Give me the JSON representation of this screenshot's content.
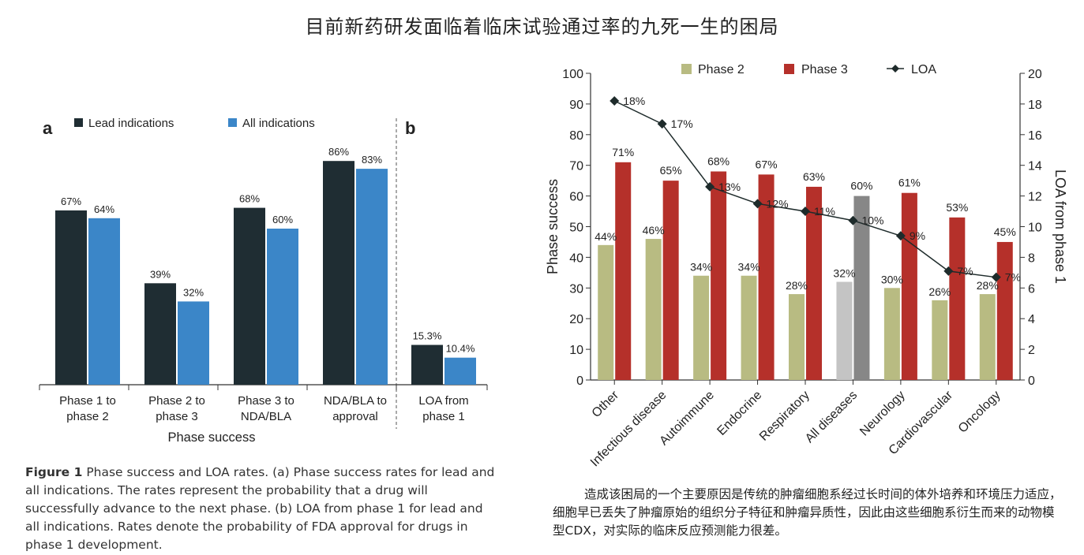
{
  "page_title": "目前新药研发面临着临床试验通过率的九死一生的困局",
  "left_figure": {
    "panel_a_letter": "a",
    "panel_b_letter": "b",
    "x_axis_title": "Phase success",
    "colors": {
      "lead": "#1f2d33",
      "all": "#3b86c8"
    },
    "caption_bold": "Figure 1",
    "caption_text": "Phase success and LOA rates. (a) Phase success rates for lead and all indications. The rates represent the probability that a drug will successfully advance to the next phase. (b) LOA from phase 1 for lead and all indications. Rates denote the probability of FDA approval for drugs in phase 1 development."
  },
  "right_figure": {
    "colors": {
      "phase2": "#b8bb82",
      "phase3": "#b5302a",
      "phase2_all": "#c4c4c4",
      "phase3_all": "#878787",
      "loa": "#1e2b2b"
    },
    "caption_text": "造成该困局的一个主要原因是传统的肿瘤细胞系经过长时间的体外培养和环境压力适应，细胞早已丢失了肿瘤原始的组织分子特征和肿瘤异质性，因此由这些细胞系衍生而来的动物模型CDX，对实际的临床反应预测能力很差。"
  },
  "chart_data": [
    {
      "type": "bar",
      "panel": "a",
      "categories": [
        "Phase 1 to\nphase 2",
        "Phase 2 to\nphase 3",
        "Phase 3 to\nNDA/BLA",
        "NDA/BLA to\napproval"
      ],
      "series": [
        {
          "name": "Lead indications",
          "values": [
            67,
            39,
            68,
            86
          ],
          "labels": [
            "67%",
            "39%",
            "68%",
            "86%"
          ]
        },
        {
          "name": "All indications",
          "values": [
            64,
            32,
            60,
            83
          ],
          "labels": [
            "64%",
            "32%",
            "60%",
            "83%"
          ]
        }
      ],
      "xlabel": "Phase success",
      "ylim": [
        0,
        100
      ],
      "legend_position": "top-left"
    },
    {
      "type": "bar",
      "panel": "b",
      "categories": [
        "LOA from\nphase 1"
      ],
      "series": [
        {
          "name": "Lead indications",
          "values": [
            15.3
          ],
          "labels": [
            "15.3%"
          ]
        },
        {
          "name": "All indications",
          "values": [
            10.4
          ],
          "labels": [
            "10.4%"
          ]
        }
      ],
      "ylim": [
        0,
        100
      ]
    },
    {
      "type": "bar",
      "categories": [
        "Other",
        "Infectious disease",
        "Autoimmune",
        "Endocrine",
        "Respiratory",
        "All diseases",
        "Neurology",
        "Cardiovascular",
        "Oncology"
      ],
      "series": [
        {
          "name": "Phase 2",
          "values": [
            44,
            46,
            34,
            34,
            28,
            32,
            30,
            26,
            28
          ],
          "labels": [
            "44%",
            "46%",
            "34%",
            "34%",
            "28%",
            "32%",
            "30%",
            "26%",
            "28%"
          ]
        },
        {
          "name": "Phase 3",
          "values": [
            71,
            65,
            68,
            67,
            63,
            60,
            61,
            53,
            45
          ],
          "labels": [
            "71%",
            "65%",
            "68%",
            "67%",
            "63%",
            "60%",
            "61%",
            "53%",
            "45%"
          ]
        },
        {
          "name": "LOA",
          "type": "line",
          "axis": "right",
          "values": [
            18.2,
            16.7,
            12.6,
            11.5,
            11.0,
            10.4,
            9.4,
            7.1,
            6.7
          ],
          "labels": [
            "18%",
            "17%",
            "13%",
            "12%",
            "11%",
            "10%",
            "9%",
            "7%",
            "7%"
          ]
        }
      ],
      "ylabel": "Phase success",
      "y2label": "LOA from phase 1",
      "ylim": [
        0,
        100
      ],
      "y2lim": [
        0,
        20
      ],
      "yticks": [
        "0",
        "10",
        "20",
        "30",
        "40",
        "50",
        "60",
        "70",
        "80",
        "90",
        "100"
      ],
      "y2ticks": [
        "0",
        "2",
        "4",
        "6",
        "8",
        "10",
        "12",
        "14",
        "16",
        "18",
        "20"
      ],
      "legend_position": "top",
      "highlight_category": "All diseases"
    }
  ]
}
